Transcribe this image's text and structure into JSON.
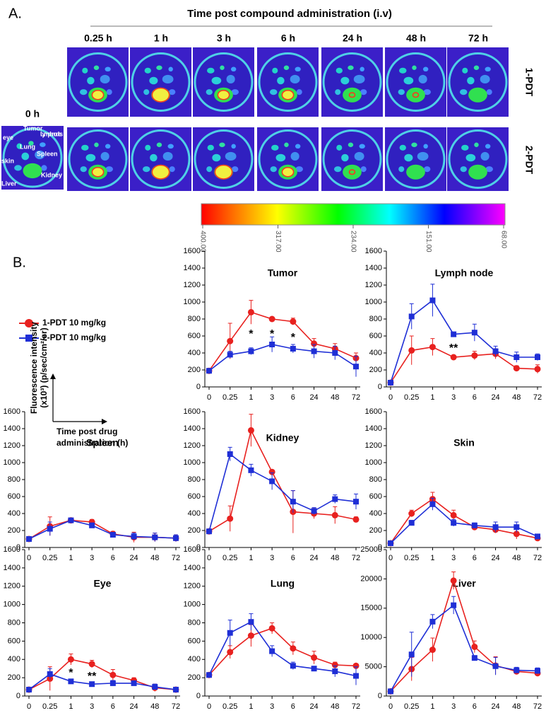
{
  "panel_a": {
    "label": "A.",
    "header": "Time post compound administration (i.v)",
    "baseline": "0 h",
    "timepoints": [
      "0.25 h",
      "1 h",
      "3 h",
      "6 h",
      "24 h",
      "48 h",
      "72 h"
    ],
    "rows": [
      "1-PDT",
      "2-PDT"
    ],
    "organ_labels": [
      "eye",
      "Tumor",
      "Lymph nodes",
      "Lung",
      "Spleen",
      "skin",
      "Kidney",
      "Liver"
    ],
    "colorbar": {
      "range": [
        400,
        68
      ],
      "ticks": [
        {
          "value": 400,
          "label": "400.00"
        },
        {
          "value": 317,
          "label": "317.00"
        },
        {
          "value": 234,
          "label": "234.00"
        },
        {
          "value": 151,
          "label": "151.00"
        },
        {
          "value": 68,
          "label": "68.00"
        }
      ]
    }
  },
  "panel_b": {
    "label": "B.",
    "y_label": [
      "Fluorescence intensity",
      "(x10³) (p/sec/cm²/sr)"
    ],
    "x_label": [
      "Time post drug",
      "administration (h)"
    ]
  },
  "chart_data": [
    {
      "type": "line",
      "title": "Tumor",
      "categories": [
        "0",
        "0.25",
        "1",
        "3",
        "6",
        "24",
        "48",
        "72"
      ],
      "ylim": [
        0,
        1600
      ],
      "yticks": [
        0,
        200,
        400,
        600,
        800,
        1000,
        1200,
        1400,
        1600
      ],
      "series": [
        {
          "name": "1-PDT 10 mg/kg",
          "color": "#e8211f",
          "marker": "circle",
          "values": [
            190,
            540,
            880,
            800,
            770,
            510,
            450,
            340
          ],
          "errors": [
            0,
            210,
            140,
            10,
            40,
            60,
            60,
            60
          ]
        },
        {
          "name": "2-PDT 10 mg/kg",
          "color": "#1f2fd6",
          "marker": "square",
          "values": [
            190,
            380,
            420,
            500,
            450,
            420,
            400,
            240
          ],
          "errors": [
            0,
            40,
            40,
            90,
            50,
            80,
            80,
            120
          ]
        }
      ],
      "annotations": [
        {
          "label": "*",
          "x": "1"
        },
        {
          "label": "*",
          "x": "3"
        },
        {
          "label": "*",
          "x": "6"
        }
      ]
    },
    {
      "type": "line",
      "title": "Lymph node",
      "categories": [
        "0",
        "0.25",
        "1",
        "3",
        "6",
        "24",
        "48",
        "72"
      ],
      "ylim": [
        0,
        1600
      ],
      "yticks": [
        0,
        200,
        400,
        600,
        800,
        1000,
        1200,
        1400,
        1600
      ],
      "series": [
        {
          "name": "1-PDT 10 mg/kg",
          "color": "#e8211f",
          "marker": "circle",
          "values": [
            50,
            430,
            470,
            350,
            370,
            390,
            220,
            210
          ],
          "errors": [
            0,
            170,
            100,
            20,
            50,
            60,
            30,
            50
          ]
        },
        {
          "name": "2-PDT 10 mg/kg",
          "color": "#1f2fd6",
          "marker": "square",
          "values": [
            50,
            830,
            1020,
            620,
            640,
            420,
            350,
            350
          ],
          "errors": [
            0,
            150,
            190,
            20,
            100,
            60,
            60,
            40
          ]
        }
      ],
      "annotations": [
        {
          "label": "**",
          "x": "3"
        }
      ]
    },
    {
      "type": "line",
      "title": "Spleen",
      "categories": [
        "0",
        "0.25",
        "1",
        "3",
        "6",
        "24",
        "48",
        "72"
      ],
      "ylim": [
        0,
        1600
      ],
      "yticks": [
        0,
        200,
        400,
        600,
        800,
        1000,
        1200,
        1400,
        1600
      ],
      "series": [
        {
          "name": "1-PDT 10 mg/kg",
          "color": "#e8211f",
          "marker": "circle",
          "values": [
            100,
            250,
            320,
            300,
            160,
            120,
            120,
            110
          ],
          "errors": [
            0,
            110,
            20,
            30,
            30,
            60,
            50,
            40
          ]
        },
        {
          "name": "2-PDT 10 mg/kg",
          "color": "#1f2fd6",
          "marker": "square",
          "values": [
            100,
            220,
            320,
            260,
            150,
            130,
            120,
            110
          ],
          "errors": [
            0,
            80,
            20,
            30,
            20,
            40,
            50,
            40
          ]
        }
      ]
    },
    {
      "type": "line",
      "title": "Kidney",
      "categories": [
        "0",
        "0.25",
        "1",
        "3",
        "6",
        "24",
        "48",
        "72"
      ],
      "ylim": [
        0,
        1600
      ],
      "yticks": [
        0,
        200,
        400,
        600,
        800,
        1000,
        1200,
        1400,
        1600
      ],
      "series": [
        {
          "name": "1-PDT 10 mg/kg",
          "color": "#e8211f",
          "marker": "circle",
          "values": [
            190,
            340,
            1380,
            890,
            420,
            400,
            380,
            330
          ],
          "errors": [
            0,
            150,
            190,
            10,
            250,
            60,
            100,
            30
          ]
        },
        {
          "name": "2-PDT 10 mg/kg",
          "color": "#1f2fd6",
          "marker": "square",
          "values": [
            190,
            1100,
            910,
            780,
            540,
            430,
            570,
            540
          ],
          "errors": [
            0,
            80,
            70,
            100,
            130,
            40,
            50,
            90
          ]
        }
      ]
    },
    {
      "type": "line",
      "title": "Skin",
      "categories": [
        "0",
        "0.25",
        "1",
        "3",
        "6",
        "24",
        "48",
        "72"
      ],
      "ylim": [
        0,
        1600
      ],
      "yticks": [
        0,
        200,
        400,
        600,
        800,
        1000,
        1200,
        1400,
        1600
      ],
      "series": [
        {
          "name": "1-PDT 10 mg/kg",
          "color": "#e8211f",
          "marker": "circle",
          "values": [
            50,
            400,
            570,
            380,
            240,
            210,
            160,
            110
          ],
          "errors": [
            0,
            40,
            80,
            60,
            30,
            40,
            60,
            20
          ]
        },
        {
          "name": "2-PDT 10 mg/kg",
          "color": "#1f2fd6",
          "marker": "square",
          "values": [
            50,
            290,
            510,
            290,
            260,
            240,
            240,
            130
          ],
          "errors": [
            0,
            30,
            70,
            40,
            30,
            60,
            60,
            20
          ]
        }
      ]
    },
    {
      "type": "line",
      "title": "Eye",
      "categories": [
        "0",
        "0.25",
        "1",
        "3",
        "6",
        "24",
        "48",
        "72"
      ],
      "ylim": [
        0,
        1600
      ],
      "yticks": [
        0,
        200,
        400,
        600,
        800,
        1000,
        1200,
        1400,
        1600
      ],
      "series": [
        {
          "name": "1-PDT 10 mg/kg",
          "color": "#e8211f",
          "marker": "circle",
          "values": [
            70,
            190,
            400,
            350,
            230,
            170,
            90,
            70
          ],
          "errors": [
            0,
            130,
            60,
            40,
            60,
            30,
            40,
            20
          ]
        },
        {
          "name": "2-PDT 10 mg/kg",
          "color": "#1f2fd6",
          "marker": "square",
          "values": [
            70,
            240,
            160,
            130,
            140,
            140,
            100,
            70
          ],
          "errors": [
            0,
            60,
            20,
            10,
            30,
            20,
            30,
            20
          ]
        }
      ],
      "annotations": [
        {
          "label": "*",
          "x": "1"
        },
        {
          "label": "**",
          "x": "3"
        }
      ]
    },
    {
      "type": "line",
      "title": "Lung",
      "categories": [
        "0",
        "0.25",
        "1",
        "3",
        "6",
        "24",
        "48",
        "72"
      ],
      "ylim": [
        0,
        1600
      ],
      "yticks": [
        0,
        200,
        400,
        600,
        800,
        1000,
        1200,
        1400,
        1600
      ],
      "series": [
        {
          "name": "1-PDT 10 mg/kg",
          "color": "#e8211f",
          "marker": "circle",
          "values": [
            230,
            480,
            660,
            740,
            520,
            420,
            340,
            330
          ],
          "errors": [
            0,
            70,
            120,
            60,
            70,
            70,
            30,
            10
          ]
        },
        {
          "name": "2-PDT 10 mg/kg",
          "color": "#1f2fd6",
          "marker": "square",
          "values": [
            230,
            690,
            810,
            490,
            330,
            300,
            270,
            220
          ],
          "errors": [
            0,
            140,
            90,
            60,
            40,
            20,
            60,
            100
          ]
        }
      ]
    },
    {
      "type": "line",
      "title": "Liver",
      "categories": [
        "0",
        "0.25",
        "1",
        "3",
        "6",
        "24",
        "48",
        "72"
      ],
      "ylim": [
        0,
        25000
      ],
      "yticks": [
        0,
        5000,
        10000,
        15000,
        20000,
        25000
      ],
      "series": [
        {
          "name": "1-PDT 10 mg/kg",
          "color": "#e8211f",
          "marker": "circle",
          "values": [
            800,
            4600,
            7900,
            19700,
            8400,
            5200,
            4200,
            3900
          ],
          "errors": [
            0,
            2000,
            2000,
            1500,
            1000,
            1500,
            500,
            500
          ]
        },
        {
          "name": "2-PDT 10 mg/kg",
          "color": "#1f2fd6",
          "marker": "square",
          "values": [
            800,
            7100,
            12700,
            15500,
            6500,
            5100,
            4400,
            4300
          ],
          "errors": [
            0,
            3800,
            1200,
            1500,
            300,
            1500,
            500,
            500
          ]
        }
      ]
    }
  ]
}
